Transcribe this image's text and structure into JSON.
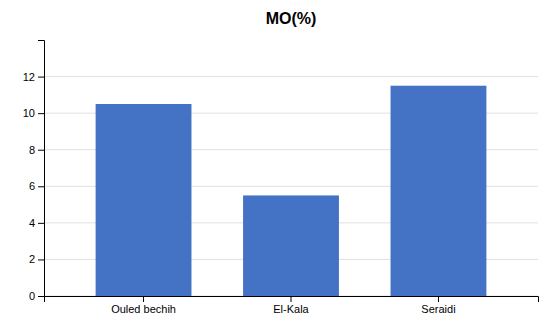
{
  "chart_data": {
    "type": "bar",
    "title": "MO(%)",
    "categories": [
      "Ouled bechih",
      "El-Kala",
      "Seraidi"
    ],
    "values": [
      10.5,
      5.5,
      11.5
    ],
    "color": "#4472C4",
    "ylim": [
      0,
      14
    ],
    "yticks": [
      0,
      2,
      4,
      6,
      8,
      10,
      12
    ],
    "grid": true
  }
}
